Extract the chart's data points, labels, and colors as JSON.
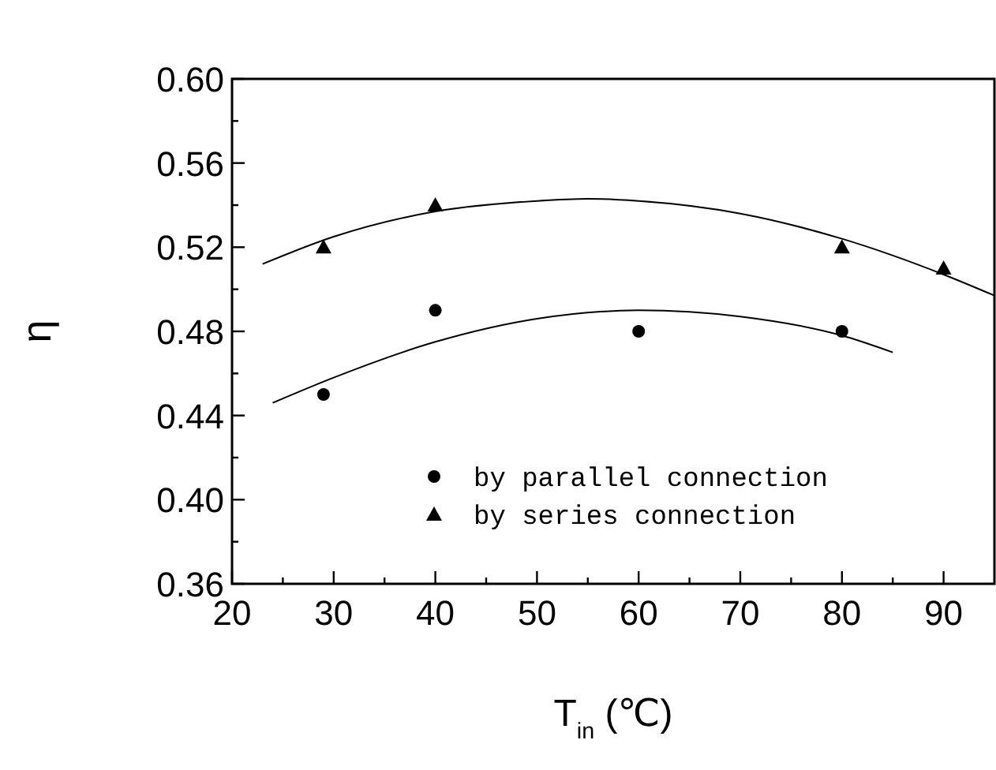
{
  "chart_data": {
    "type": "scatter",
    "xlabel": "T$_{in}$ (℃)",
    "ylabel": "η",
    "xlim": [
      20,
      95
    ],
    "ylim": [
      0.36,
      0.6
    ],
    "xticks": [
      20,
      {
        "value": 25,
        "label": null
      },
      30,
      {
        "value": 35,
        "label": null
      },
      40,
      {
        "value": 45,
        "label": null
      },
      50,
      {
        "value": 55,
        "label": null
      },
      60,
      {
        "value": 65,
        "label": null
      },
      70,
      {
        "value": 75,
        "label": null
      },
      80,
      {
        "value": 85,
        "label": null
      },
      90
    ],
    "yticks": [
      {
        "value": 0.36,
        "label": "0.36"
      },
      {
        "value": 0.38,
        "label": null
      },
      {
        "value": 0.4,
        "label": "0.40"
      },
      {
        "value": 0.42,
        "label": null
      },
      {
        "value": 0.44,
        "label": "0.44"
      },
      {
        "value": 0.46,
        "label": null
      },
      {
        "value": 0.48,
        "label": "0.48"
      },
      {
        "value": 0.5,
        "label": null
      },
      {
        "value": 0.52,
        "label": "0.52"
      },
      {
        "value": 0.54,
        "label": null
      },
      {
        "value": 0.56,
        "label": "0.56"
      },
      {
        "value": 0.58,
        "label": null
      },
      {
        "value": 0.6,
        "label": "0.60"
      }
    ],
    "grid": false,
    "legend": "bottom right",
    "series": [
      {
        "name": "by parallel connection",
        "marker": "circle",
        "color": "#000000",
        "x": [
          29,
          40,
          60,
          80
        ],
        "values": [
          0.45,
          0.49,
          0.48,
          0.48
        ]
      },
      {
        "name": "by series connection",
        "marker": "triangle",
        "color": "#000000",
        "x": [
          29,
          40,
          80,
          90
        ],
        "values": [
          0.52,
          0.54,
          0.52,
          0.51
        ]
      },
      {
        "type": "line",
        "marker": "none",
        "line_style": "solid",
        "color": "#000000",
        "x": [
          24,
          30,
          40,
          50,
          60,
          70,
          80,
          85
        ],
        "values": [
          0.446,
          0.458,
          0.475,
          0.486,
          0.49,
          0.487,
          0.478,
          0.47
        ]
      },
      {
        "type": "line",
        "marker": "none",
        "line_style": "solid",
        "color": "#000000",
        "x": [
          23,
          30,
          40,
          50,
          55,
          60,
          70,
          80,
          90,
          95
        ],
        "values": [
          0.512,
          0.525,
          0.537,
          0.542,
          0.543,
          0.542,
          0.536,
          0.524,
          0.507,
          0.497
        ]
      }
    ]
  }
}
